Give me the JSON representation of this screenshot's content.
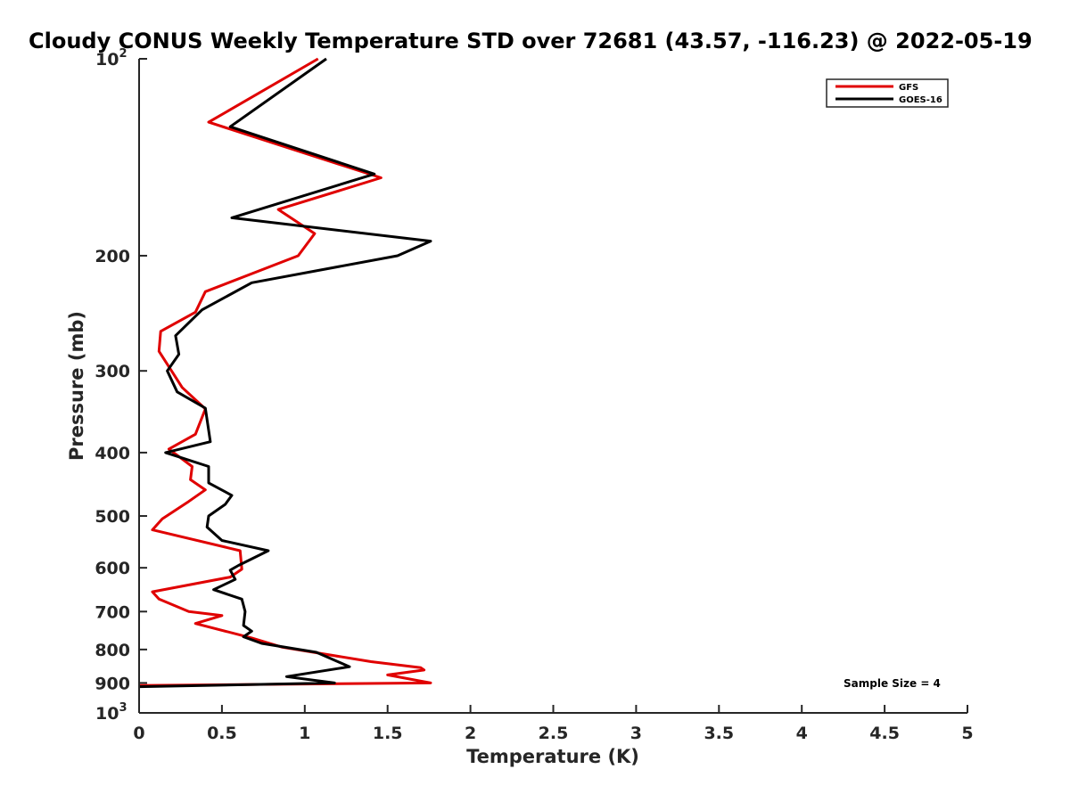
{
  "chart_data": {
    "type": "line",
    "title": "Cloudy CONUS Weekly Temperature STD over 72681 (43.57, -116.23) @ 2022-05-19",
    "xlabel": "Temperature (K)",
    "ylabel": "Pressure (mb)",
    "xlim": [
      0,
      5
    ],
    "ylim": [
      100,
      1000
    ],
    "y_scale": "log",
    "y_reversed": true,
    "grid": false,
    "legend_position": "top-right",
    "x_ticks": [
      "0",
      "0.5",
      "1",
      "1.5",
      "2",
      "2.5",
      "3",
      "3.5",
      "4",
      "4.5",
      "5"
    ],
    "y_ticks": [
      {
        "value": 100,
        "base": "10",
        "exp": "2"
      },
      {
        "value": 200,
        "label": "200"
      },
      {
        "value": 300,
        "label": "300"
      },
      {
        "value": 400,
        "label": "400"
      },
      {
        "value": 500,
        "label": "500"
      },
      {
        "value": 600,
        "label": "600"
      },
      {
        "value": 700,
        "label": "700"
      },
      {
        "value": 800,
        "label": "800"
      },
      {
        "value": 900,
        "label": "900"
      },
      {
        "value": 1000,
        "base": "10",
        "exp": "3"
      }
    ],
    "annotation": "Sample Size = 4",
    "series": [
      {
        "name": "GFS",
        "color": "#e00000",
        "points": [
          [
            1.08,
            100
          ],
          [
            0.42,
            125
          ],
          [
            1.46,
            152
          ],
          [
            0.84,
            170
          ],
          [
            1.06,
            185
          ],
          [
            0.96,
            200
          ],
          [
            0.4,
            227
          ],
          [
            0.34,
            244
          ],
          [
            0.13,
            261
          ],
          [
            0.12,
            280
          ],
          [
            0.26,
            318
          ],
          [
            0.4,
            343
          ],
          [
            0.34,
            375
          ],
          [
            0.18,
            395
          ],
          [
            0.32,
            420
          ],
          [
            0.31,
            440
          ],
          [
            0.4,
            456
          ],
          [
            0.3,
            475
          ],
          [
            0.14,
            505
          ],
          [
            0.08,
            525
          ],
          [
            0.61,
            565
          ],
          [
            0.62,
            603
          ],
          [
            0.55,
            620
          ],
          [
            0.08,
            653
          ],
          [
            0.12,
            670
          ],
          [
            0.3,
            700
          ],
          [
            0.5,
            710
          ],
          [
            0.34,
            730
          ],
          [
            0.68,
            768
          ],
          [
            0.86,
            793
          ],
          [
            1.4,
            835
          ],
          [
            1.7,
            853
          ],
          [
            1.72,
            860
          ],
          [
            1.5,
            875
          ],
          [
            1.76,
            900
          ],
          [
            0.0,
            908
          ]
        ]
      },
      {
        "name": "GOES-16",
        "color": "#000000",
        "points": [
          [
            1.13,
            100
          ],
          [
            0.55,
            127
          ],
          [
            1.42,
            150
          ],
          [
            0.56,
            175
          ],
          [
            1.76,
            190
          ],
          [
            1.56,
            200
          ],
          [
            0.68,
            220
          ],
          [
            0.38,
            242
          ],
          [
            0.22,
            265
          ],
          [
            0.24,
            283
          ],
          [
            0.17,
            300
          ],
          [
            0.23,
            323
          ],
          [
            0.4,
            342
          ],
          [
            0.43,
            385
          ],
          [
            0.16,
            400
          ],
          [
            0.42,
            420
          ],
          [
            0.42,
            445
          ],
          [
            0.56,
            465
          ],
          [
            0.52,
            480
          ],
          [
            0.42,
            500
          ],
          [
            0.41,
            520
          ],
          [
            0.5,
            545
          ],
          [
            0.78,
            565
          ],
          [
            0.6,
            595
          ],
          [
            0.55,
            605
          ],
          [
            0.58,
            625
          ],
          [
            0.45,
            648
          ],
          [
            0.62,
            670
          ],
          [
            0.64,
            700
          ],
          [
            0.63,
            735
          ],
          [
            0.68,
            750
          ],
          [
            0.63,
            765
          ],
          [
            0.74,
            783
          ],
          [
            1.07,
            808
          ],
          [
            1.27,
            850
          ],
          [
            0.89,
            880
          ],
          [
            1.18,
            900
          ],
          [
            0.0,
            912
          ]
        ]
      }
    ]
  }
}
